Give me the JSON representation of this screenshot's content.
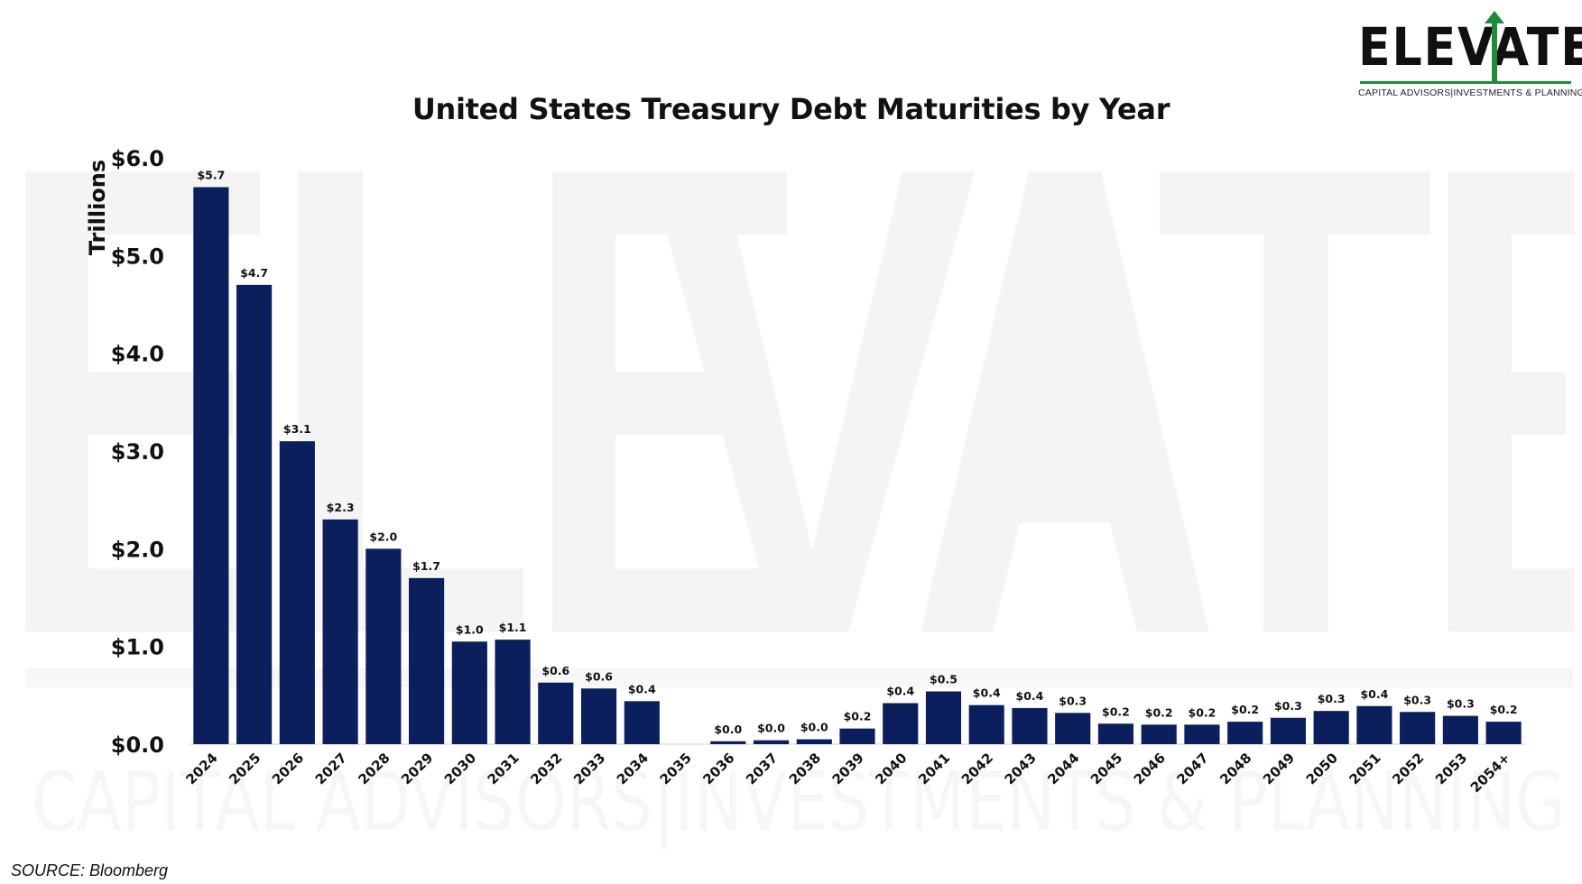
{
  "brand": {
    "name": "ELEVATE",
    "tagline": "CAPITAL ADVISORS|INVESTMENTS & PLANNING",
    "accent_color": "#1f8a3a",
    "watermark_color": "#f3f3f3"
  },
  "source": "SOURCE: Bloomberg",
  "chart_data": {
    "type": "bar",
    "title": "United States Treasury Debt Maturities by Year",
    "xlabel": "",
    "ylabel": "Trillions",
    "ylim": [
      0,
      6
    ],
    "yticks": [
      0,
      1,
      2,
      3,
      4,
      5,
      6
    ],
    "ytick_labels": [
      "$0.0",
      "$1.0",
      "$2.0",
      "$3.0",
      "$4.0",
      "$5.0",
      "$6.0"
    ],
    "bar_color": "#0b1f5c",
    "grid": false,
    "categories": [
      "2024",
      "2025",
      "2026",
      "2027",
      "2028",
      "2029",
      "2030",
      "2031",
      "2032",
      "2033",
      "2034",
      "2035",
      "2036",
      "2037",
      "2038",
      "2039",
      "2040",
      "2041",
      "2042",
      "2043",
      "2044",
      "2045",
      "2046",
      "2047",
      "2048",
      "2049",
      "2050",
      "2051",
      "2052",
      "2053",
      "2054+"
    ],
    "values": [
      5.7,
      4.7,
      3.1,
      2.3,
      2.0,
      1.7,
      1.05,
      1.07,
      0.63,
      0.57,
      0.44,
      null,
      0.03,
      0.04,
      0.05,
      0.16,
      0.42,
      0.54,
      0.4,
      0.37,
      0.32,
      0.21,
      0.2,
      0.2,
      0.23,
      0.27,
      0.34,
      0.39,
      0.33,
      0.29,
      0.23
    ],
    "data_labels": [
      "$5.7",
      "$4.7",
      "$3.1",
      "$2.3",
      "$2.0",
      "$1.7",
      "$1.0",
      "$1.1",
      "$0.6",
      "$0.6",
      "$0.4",
      "",
      "$0.0",
      "$0.0",
      "$0.0",
      "$0.2",
      "$0.4",
      "$0.5",
      "$0.4",
      "$0.4",
      "$0.3",
      "$0.2",
      "$0.2",
      "$0.2",
      "$0.2",
      "$0.3",
      "$0.3",
      "$0.4",
      "$0.3",
      "$0.3",
      "$0.2"
    ]
  }
}
